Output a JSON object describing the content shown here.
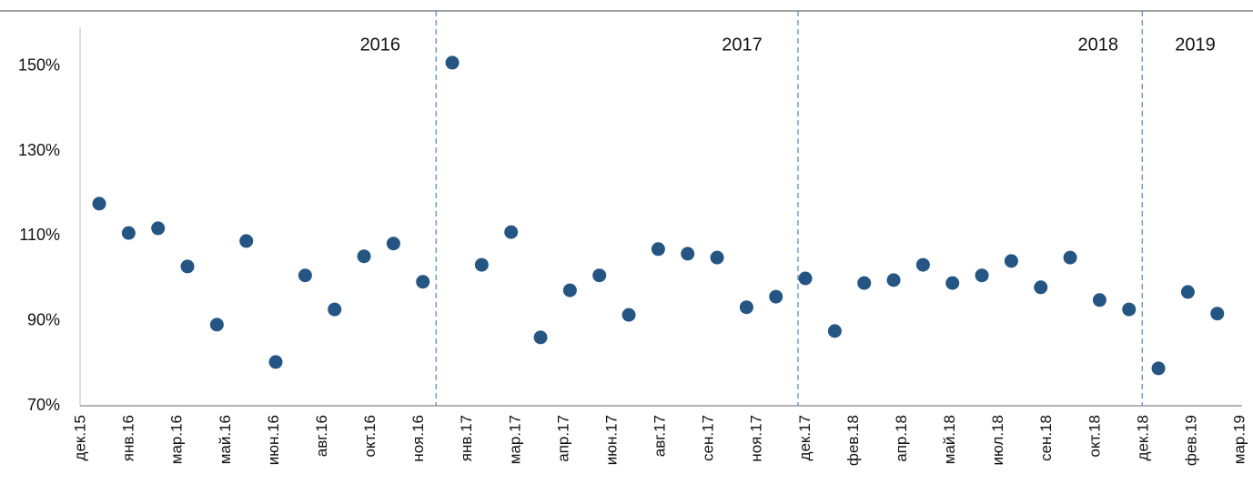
{
  "chart_data": {
    "type": "scatter",
    "x": [
      0.65,
      1.65,
      2.65,
      3.65,
      4.65,
      5.65,
      6.65,
      7.65,
      8.65,
      9.65,
      10.65,
      11.65,
      12.65,
      13.65,
      14.65,
      15.65,
      16.65,
      17.65,
      18.65,
      19.65,
      20.65,
      21.65,
      22.65,
      23.65,
      24.65,
      25.65,
      26.65,
      27.65,
      28.65,
      29.65,
      30.65,
      31.65,
      32.65,
      33.65,
      34.65,
      35.65,
      36.65,
      37.65,
      38.65
    ],
    "values": [
      117.6,
      110.7,
      111.8,
      102.8,
      89.1,
      108.8,
      80.3,
      100.7,
      92.7,
      105.2,
      108.2,
      99.2,
      150.8,
      103.2,
      110.9,
      86.1,
      97.2,
      100.7,
      91.4,
      106.9,
      105.8,
      104.9,
      93.2,
      95.7,
      100.0,
      87.6,
      98.9,
      99.6,
      103.2,
      98.9,
      100.7,
      104.1,
      97.9,
      104.9,
      94.9,
      92.7,
      78.8,
      96.8,
      91.7
    ],
    "color": "#255582",
    "xlim": [
      0,
      39.4
    ],
    "xticks": [
      {
        "value": 0,
        "label": "дек.15"
      },
      {
        "value": 1.64,
        "label": "янв.16"
      },
      {
        "value": 3.28,
        "label": "мар.16"
      },
      {
        "value": 4.93,
        "label": "май.16"
      },
      {
        "value": 6.57,
        "label": "июн.16"
      },
      {
        "value": 8.21,
        "label": "авг.16"
      },
      {
        "value": 9.85,
        "label": "окт.16"
      },
      {
        "value": 11.49,
        "label": "ноя.16"
      },
      {
        "value": 13.13,
        "label": "янв.17"
      },
      {
        "value": 14.78,
        "label": "мар.17"
      },
      {
        "value": 16.42,
        "label": "апр.17"
      },
      {
        "value": 18.06,
        "label": "июн.17"
      },
      {
        "value": 19.7,
        "label": "авг.17"
      },
      {
        "value": 21.34,
        "label": "сен.17"
      },
      {
        "value": 22.98,
        "label": "ноя.17"
      },
      {
        "value": 24.63,
        "label": "дек.17"
      },
      {
        "value": 26.27,
        "label": "фев.18"
      },
      {
        "value": 27.91,
        "label": "апр.18"
      },
      {
        "value": 29.55,
        "label": "май.18"
      },
      {
        "value": 31.19,
        "label": "июл.18"
      },
      {
        "value": 32.83,
        "label": "сен.18"
      },
      {
        "value": 34.48,
        "label": "окт.18"
      },
      {
        "value": 36.12,
        "label": "дек.18"
      },
      {
        "value": 37.76,
        "label": "фев.19"
      },
      {
        "value": 39.4,
        "label": "мар.19"
      }
    ],
    "ylim": [
      70,
      163
    ],
    "yticks": [
      {
        "value": 70,
        "label": "70%"
      },
      {
        "value": 90,
        "label": "90%"
      },
      {
        "value": 110,
        "label": "110%"
      },
      {
        "value": 130,
        "label": "130%"
      },
      {
        "value": 150,
        "label": "150%"
      }
    ],
    "annotations": [
      {
        "text": "2016",
        "x": 10.2,
        "line": 12.1
      },
      {
        "text": "2017",
        "x": 22.5,
        "line": 24.4
      },
      {
        "text": "2018",
        "x": 34.6,
        "line": 36.1
      },
      {
        "text": "2019",
        "x": 37.9
      }
    ]
  }
}
